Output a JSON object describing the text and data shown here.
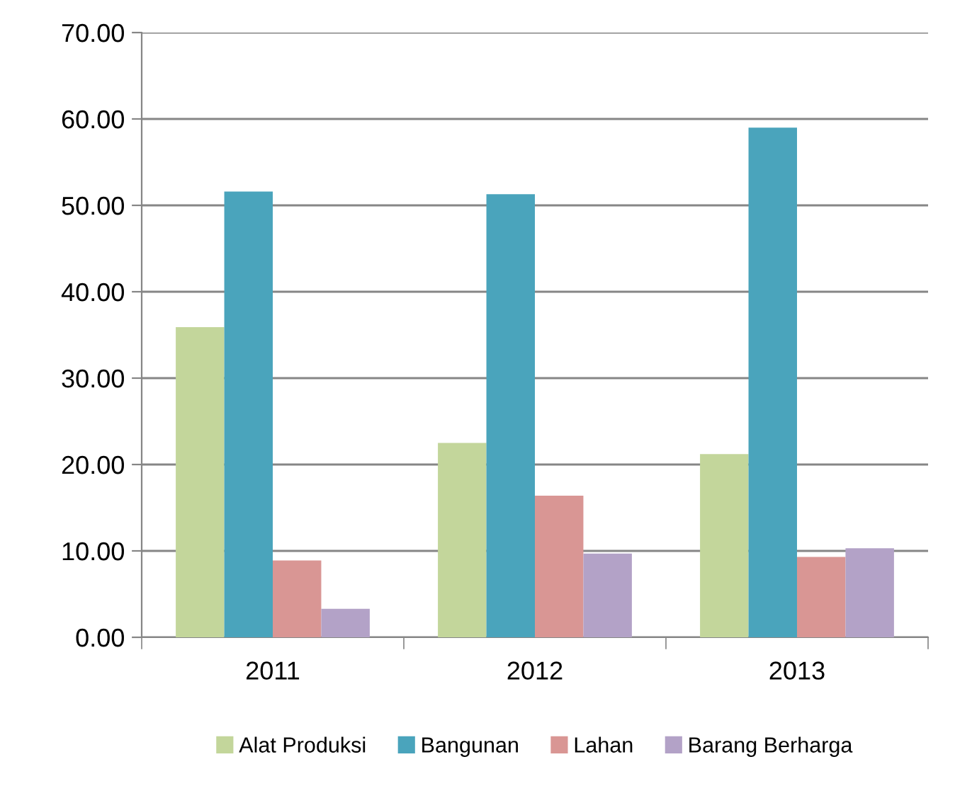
{
  "chart_data": {
    "type": "bar",
    "categories": [
      "2011",
      "2012",
      "2013"
    ],
    "series": [
      {
        "name": "Alat Produksi",
        "color": "#c3d69b",
        "values": [
          35.9,
          22.5,
          21.2
        ]
      },
      {
        "name": "Bangunan",
        "color": "#4aa4bc",
        "values": [
          51.6,
          51.3,
          59.0
        ]
      },
      {
        "name": "Lahan",
        "color": "#d99694",
        "values": [
          8.9,
          16.4,
          9.3
        ]
      },
      {
        "name": "Barang Berharga",
        "color": "#b3a2c7",
        "values": [
          3.3,
          9.7,
          10.3
        ]
      }
    ],
    "ylim": [
      0,
      70
    ],
    "yticks": [
      {
        "value": 0,
        "label": "0.00"
      },
      {
        "value": 10,
        "label": "10.00"
      },
      {
        "value": 20,
        "label": "20.00"
      },
      {
        "value": 30,
        "label": "30.00"
      },
      {
        "value": 40,
        "label": "40.00"
      },
      {
        "value": 50,
        "label": "50.00"
      },
      {
        "value": 60,
        "label": "60.00"
      },
      {
        "value": 70,
        "label": "70.00"
      }
    ],
    "grid": "y",
    "legend": "bottom"
  }
}
